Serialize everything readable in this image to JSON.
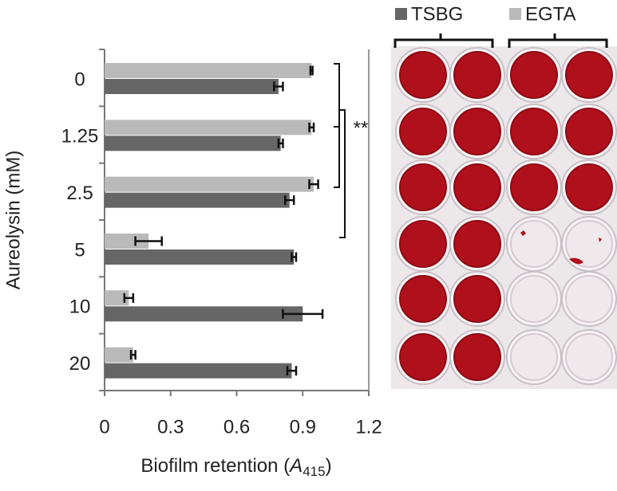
{
  "chart_data": {
    "type": "hbar",
    "y_label": "Aureolysin (mM)",
    "x_label_parts": [
      "Biofilm retention (",
      "A",
      "415",
      ")"
    ],
    "categories": [
      "0",
      "1.25",
      "2.5",
      "5",
      "10",
      "20"
    ],
    "series": [
      {
        "name": "TSBG",
        "color": "#666666",
        "values": [
          0.79,
          0.8,
          0.84,
          0.86,
          0.9,
          0.85
        ],
        "errors": [
          0.02,
          0.01,
          0.02,
          0.01,
          0.09,
          0.02
        ]
      },
      {
        "name": "EGTA",
        "color": "#b9b9b9",
        "values": [
          0.94,
          0.94,
          0.95,
          0.2,
          0.11,
          0.13
        ],
        "errors": [
          0.005,
          0.01,
          0.02,
          0.06,
          0.02,
          0.01
        ]
      }
    ],
    "xlim": [
      0,
      1.2
    ],
    "xticks": [
      0,
      0.3,
      0.6,
      0.9,
      1.2
    ],
    "annotation": "**"
  }
}
